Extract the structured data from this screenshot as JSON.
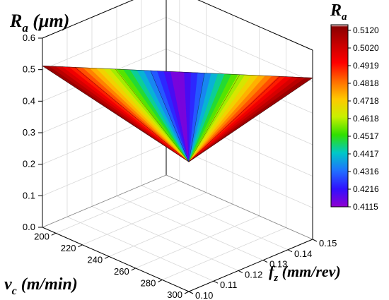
{
  "chart_data": {
    "type": "surface-3d",
    "z_axis": {
      "label_main": "R",
      "label_sub": "a",
      "label_unit": " (μm)",
      "range": [
        0,
        0.6
      ],
      "ticks": [
        "0.0",
        "0.1",
        "0.2",
        "0.3",
        "0.4",
        "0.5",
        "0.6"
      ]
    },
    "vc_axis": {
      "label_main": "v",
      "label_sub": "c",
      "label_unit": " (m/min)",
      "range": [
        190,
        300
      ],
      "ticks": [
        "200",
        "220",
        "240",
        "260",
        "280",
        "300"
      ]
    },
    "fz_axis": {
      "label_main": "f",
      "label_sub": "z",
      "label_unit": " (mm/rev)",
      "range": [
        0.1,
        0.15
      ],
      "ticks": [
        "0.10",
        "0.11",
        "0.12",
        "0.13",
        "0.14",
        "0.15"
      ]
    },
    "surface": {
      "description": "triangular surface patch",
      "vertices": [
        {
          "vc": 190,
          "fz": 0.1,
          "ra": 0.512
        },
        {
          "vc": 300,
          "fz": 0.15,
          "ra": 0.512
        },
        {
          "vc": 300,
          "fz": 0.1,
          "ra": 0.4115
        }
      ]
    },
    "colorbar": {
      "title_main": "R",
      "title_sub": "a",
      "levels": [
        "0.5120",
        "0.5020",
        "0.4919",
        "0.4818",
        "0.4718",
        "0.4618",
        "0.4517",
        "0.4417",
        "0.4316",
        "0.4216",
        "0.4115"
      ],
      "colors": [
        "#ffffff",
        "#8b0000",
        "#c80000",
        "#ff0000",
        "#ff6a00",
        "#ffc800",
        "#c8f000",
        "#30e000",
        "#00c8c8",
        "#2070ff",
        "#3010ff",
        "#9000d0"
      ]
    },
    "grid": true
  }
}
